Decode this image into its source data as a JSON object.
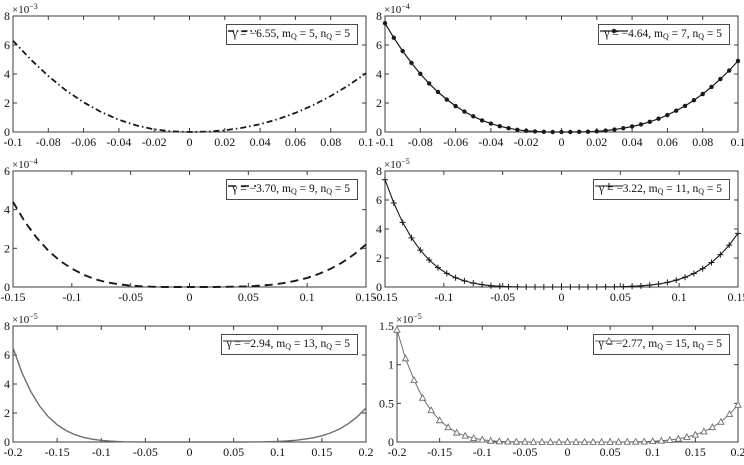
{
  "figure": {
    "background": "#ffffff",
    "grid": "off",
    "rows": 3,
    "cols": 2,
    "colors": {
      "black_line": "#1a1a1a",
      "gray_line": "#6e6e6e",
      "axis": "#3c3c3c",
      "text": "#111111"
    }
  },
  "chart_data": [
    {
      "name": "top-left",
      "type": "line",
      "exponent": {
        "base": "×10",
        "power": "−3"
      },
      "xlim": [
        -0.1,
        0.1
      ],
      "ylim": [
        0,
        8
      ],
      "xticks": {
        "values": [
          -0.1,
          -0.08,
          -0.06,
          -0.04,
          -0.02,
          0,
          0.02,
          0.04,
          0.06,
          0.08,
          0.1
        ],
        "labels": [
          "-0.1",
          "-0.08",
          "-0.06",
          "-0.04",
          "-0.02",
          "0",
          "0.02",
          "0.04",
          "0.06",
          "0.08",
          "0.1"
        ]
      },
      "yticks": {
        "values": [
          0,
          2,
          4,
          6,
          8
        ],
        "labels": [
          "0",
          "2",
          "4",
          "6",
          "8"
        ]
      },
      "style": {
        "color": "#1a1a1a",
        "dash": "6,3,1.5,3",
        "line_width": 1.8,
        "marker": "none"
      },
      "legend": {
        "gamma": "−6.55",
        "m_Q": "5",
        "n_Q": "5",
        "position": "top-right",
        "label_parts": [
          "γ = −6.55, m",
          {
            "sub": "Q"
          },
          " = 5, n",
          {
            "sub": "Q"
          },
          " = 5"
        ]
      },
      "x": [
        -0.1,
        -0.09,
        -0.08,
        -0.07,
        -0.06,
        -0.05,
        -0.04,
        -0.03,
        -0.02,
        -0.01,
        0,
        0.01,
        0.02,
        0.03,
        0.04,
        0.05,
        0.06,
        0.07,
        0.08,
        0.09,
        0.1
      ],
      "y": [
        6.3,
        5.0,
        3.86,
        2.87,
        2.05,
        1.37,
        0.84,
        0.45,
        0.18,
        0.04,
        0,
        0.03,
        0.12,
        0.29,
        0.54,
        0.88,
        1.32,
        1.85,
        2.48,
        3.21,
        4.05
      ]
    },
    {
      "name": "top-right",
      "type": "line",
      "exponent": {
        "base": "×10",
        "power": "−4"
      },
      "xlim": [
        -0.1,
        0.1
      ],
      "ylim": [
        0,
        8
      ],
      "xticks": {
        "values": [
          -0.1,
          -0.08,
          -0.06,
          -0.04,
          -0.02,
          0,
          0.02,
          0.04,
          0.06,
          0.08,
          0.1
        ],
        "labels": [
          "-0.1",
          "-0.08",
          "-0.06",
          "-0.04",
          "-0.02",
          "0",
          "0.02",
          "0.04",
          "0.06",
          "0.08",
          "0.1"
        ]
      },
      "yticks": {
        "values": [
          0,
          2,
          4,
          6,
          8
        ],
        "labels": [
          "0",
          "2",
          "4",
          "6",
          "8"
        ]
      },
      "style": {
        "color": "#1a1a1a",
        "dash": "",
        "line_width": 1.2,
        "marker": "dot"
      },
      "legend": {
        "gamma": "−4.64",
        "m_Q": "7",
        "n_Q": "5",
        "position": "top-right",
        "label_parts": [
          "γ = −4.64, m",
          {
            "sub": "Q"
          },
          " = 7, n",
          {
            "sub": "Q"
          },
          " = 5"
        ]
      },
      "x": [
        -0.1,
        -0.095,
        -0.09,
        -0.085,
        -0.08,
        -0.075,
        -0.07,
        -0.065,
        -0.06,
        -0.055,
        -0.05,
        -0.045,
        -0.04,
        -0.035,
        -0.03,
        -0.025,
        -0.02,
        -0.015,
        -0.01,
        -0.005,
        0,
        0.005,
        0.01,
        0.015,
        0.02,
        0.025,
        0.03,
        0.035,
        0.04,
        0.045,
        0.05,
        0.055,
        0.06,
        0.065,
        0.07,
        0.075,
        0.08,
        0.085,
        0.09,
        0.095,
        0.1
      ],
      "y": [
        7.5,
        6.5,
        5.58,
        4.76,
        4.01,
        3.35,
        2.76,
        2.24,
        1.79,
        1.41,
        1.08,
        0.8,
        0.58,
        0.4,
        0.26,
        0.15,
        0.08,
        0.04,
        0.01,
        0,
        0,
        0,
        0.01,
        0.02,
        0.05,
        0.1,
        0.17,
        0.26,
        0.38,
        0.52,
        0.7,
        0.92,
        1.17,
        1.47,
        1.8,
        2.19,
        2.62,
        3.11,
        3.65,
        4.24,
        4.9
      ]
    },
    {
      "name": "middle-left",
      "type": "line",
      "exponent": {
        "base": "×10",
        "power": "−4"
      },
      "xlim": [
        -0.15,
        0.15
      ],
      "ylim": [
        0,
        6
      ],
      "xticks": {
        "values": [
          -0.15,
          -0.1,
          -0.05,
          0,
          0.05,
          0.1,
          0.15
        ],
        "labels": [
          "-0.15",
          "-0.1",
          "-0.05",
          "0",
          "0.05",
          "0.1",
          "0.15"
        ]
      },
      "yticks": {
        "values": [
          0,
          2,
          4,
          6
        ],
        "labels": [
          "0",
          "2",
          "4",
          "6"
        ]
      },
      "style": {
        "color": "#1a1a1a",
        "dash": "8,5",
        "line_width": 1.9,
        "marker": "none"
      },
      "legend": {
        "gamma": "−3.70",
        "m_Q": "9",
        "n_Q": "5",
        "position": "top-right",
        "label_parts": [
          "γ = −3.70, m",
          {
            "sub": "Q"
          },
          " = 9, n",
          {
            "sub": "Q"
          },
          " = 5"
        ]
      },
      "x": [
        -0.15,
        -0.14,
        -0.13,
        -0.12,
        -0.11,
        -0.1,
        -0.09,
        -0.08,
        -0.07,
        -0.06,
        -0.05,
        -0.04,
        -0.03,
        -0.02,
        -0.01,
        0,
        0.01,
        0.02,
        0.03,
        0.04,
        0.05,
        0.06,
        0.07,
        0.08,
        0.09,
        0.1,
        0.11,
        0.12,
        0.13,
        0.14,
        0.15
      ],
      "y": [
        4.4,
        3.38,
        2.56,
        1.88,
        1.35,
        0.95,
        0.63,
        0.4,
        0.24,
        0.14,
        0.07,
        0.03,
        0.01,
        0,
        0,
        0,
        0,
        0,
        0.01,
        0.02,
        0.03,
        0.07,
        0.12,
        0.2,
        0.32,
        0.47,
        0.68,
        0.94,
        1.28,
        1.69,
        2.2
      ]
    },
    {
      "name": "middle-right",
      "type": "line",
      "exponent": {
        "base": "×10",
        "power": "−5"
      },
      "xlim": [
        -0.15,
        0.15
      ],
      "ylim": [
        0,
        8
      ],
      "xticks": {
        "values": [
          -0.15,
          -0.1,
          -0.05,
          0,
          0.05,
          0.1,
          0.15
        ],
        "labels": [
          "-0.15",
          "-0.1",
          "-0.05",
          "0",
          "0.05",
          "0.1",
          "0.15"
        ]
      },
      "yticks": {
        "values": [
          0,
          2,
          4,
          6,
          8
        ],
        "labels": [
          "0",
          "2",
          "4",
          "6",
          "8"
        ]
      },
      "style": {
        "color": "#1a1a1a",
        "dash": "",
        "line_width": 1.1,
        "marker": "plus"
      },
      "legend": {
        "gamma": "−3.22",
        "m_Q": "11",
        "n_Q": "5",
        "position": "top-right",
        "label_parts": [
          "γ = −3.22, m",
          {
            "sub": "Q"
          },
          " = 11, n",
          {
            "sub": "Q"
          },
          " = 5"
        ]
      },
      "x": [
        -0.15,
        -0.1425,
        -0.135,
        -0.1275,
        -0.12,
        -0.1125,
        -0.105,
        -0.0975,
        -0.09,
        -0.0825,
        -0.075,
        -0.0675,
        -0.06,
        -0.0525,
        -0.045,
        -0.0375,
        -0.03,
        -0.0225,
        -0.015,
        -0.0075,
        0,
        0.0075,
        0.015,
        0.0225,
        0.03,
        0.0375,
        0.045,
        0.0525,
        0.06,
        0.0675,
        0.075,
        0.0825,
        0.09,
        0.0975,
        0.105,
        0.1125,
        0.12,
        0.1275,
        0.135,
        0.1425,
        0.15
      ],
      "y": [
        7.4,
        5.79,
        4.46,
        3.39,
        2.54,
        1.86,
        1.34,
        0.94,
        0.64,
        0.42,
        0.27,
        0.16,
        0.09,
        0.05,
        0.02,
        0.01,
        0,
        0,
        0,
        0,
        0,
        0,
        0,
        0,
        0,
        0.01,
        0.01,
        0.02,
        0.05,
        0.08,
        0.13,
        0.21,
        0.32,
        0.47,
        0.67,
        0.93,
        1.27,
        1.69,
        2.23,
        2.89,
        3.7
      ]
    },
    {
      "name": "bottom-left",
      "type": "line",
      "exponent": {
        "base": "×10",
        "power": "−5"
      },
      "xlim": [
        -0.2,
        0.2
      ],
      "ylim": [
        0,
        8
      ],
      "xticks": {
        "values": [
          -0.2,
          -0.15,
          -0.1,
          -0.05,
          0,
          0.05,
          0.1,
          0.15,
          0.2
        ],
        "labels": [
          "-0.2",
          "-0.15",
          "-0.1",
          "-0.05",
          "0",
          "0.05",
          "0.1",
          "0.15",
          "0.2"
        ]
      },
      "yticks": {
        "values": [
          0,
          2,
          4,
          6,
          8
        ],
        "labels": [
          "0",
          "2",
          "4",
          "6",
          "8"
        ]
      },
      "style": {
        "color": "#6e6e6e",
        "dash": "",
        "line_width": 1.4,
        "marker": "none"
      },
      "legend": {
        "gamma": "−2.94",
        "m_Q": "13",
        "n_Q": "5",
        "position": "top-right",
        "label_parts": [
          "γ = −2.94, m",
          {
            "sub": "Q"
          },
          " = 13, n",
          {
            "sub": "Q"
          },
          " = 5"
        ]
      },
      "x": [
        -0.2,
        -0.19,
        -0.18,
        -0.17,
        -0.16,
        -0.15,
        -0.14,
        -0.13,
        -0.12,
        -0.11,
        -0.1,
        -0.09,
        -0.08,
        -0.07,
        -0.06,
        -0.05,
        -0.04,
        -0.03,
        -0.02,
        -0.01,
        0,
        0.01,
        0.02,
        0.03,
        0.04,
        0.05,
        0.06,
        0.07,
        0.08,
        0.09,
        0.1,
        0.11,
        0.12,
        0.13,
        0.14,
        0.15,
        0.16,
        0.17,
        0.18,
        0.19,
        0.2
      ],
      "y": [
        6.5,
        4.8,
        3.49,
        2.49,
        1.74,
        1.19,
        0.79,
        0.51,
        0.32,
        0.19,
        0.11,
        0.06,
        0.03,
        0.01,
        0.01,
        0,
        0,
        0,
        0,
        0,
        0,
        0,
        0,
        0,
        0,
        0,
        0,
        0.01,
        0.01,
        0.02,
        0.04,
        0.07,
        0.12,
        0.19,
        0.29,
        0.43,
        0.63,
        0.9,
        1.26,
        1.74,
        2.35
      ]
    },
    {
      "name": "bottom-right",
      "type": "line",
      "exponent": {
        "base": "×10",
        "power": "−5"
      },
      "xlim": [
        -0.2,
        0.2
      ],
      "ylim": [
        0,
        1.5
      ],
      "xticks": {
        "values": [
          -0.2,
          -0.15,
          -0.1,
          -0.05,
          0,
          0.05,
          0.1,
          0.15,
          0.2
        ],
        "labels": [
          "-0.2",
          "-0.15",
          "-0.1",
          "-0.05",
          "0",
          "0.05",
          "0.1",
          "0.15",
          "0.2"
        ]
      },
      "yticks": {
        "values": [
          0,
          0.5,
          1,
          1.5
        ],
        "labels": [
          "0",
          "0.5",
          "1",
          "1.5"
        ]
      },
      "style": {
        "color": "#6e6e6e",
        "dash": "",
        "line_width": 1.0,
        "marker": "triangle"
      },
      "legend": {
        "gamma": "−2.77",
        "m_Q": "15",
        "n_Q": "5",
        "position": "top-right",
        "label_parts": [
          "γ = −2.77, m",
          {
            "sub": "Q"
          },
          " = 15, n",
          {
            "sub": "Q"
          },
          " = 5"
        ]
      },
      "x": [
        -0.2,
        -0.19,
        -0.18,
        -0.17,
        -0.16,
        -0.15,
        -0.14,
        -0.13,
        -0.12,
        -0.11,
        -0.1,
        -0.09,
        -0.08,
        -0.07,
        -0.06,
        -0.05,
        -0.04,
        -0.03,
        -0.02,
        -0.01,
        0,
        0.01,
        0.02,
        0.03,
        0.04,
        0.05,
        0.06,
        0.07,
        0.08,
        0.09,
        0.1,
        0.11,
        0.12,
        0.13,
        0.14,
        0.15,
        0.16,
        0.17,
        0.18,
        0.19,
        0.2
      ],
      "y": [
        1.45,
        1.08,
        0.8,
        0.57,
        0.41,
        0.28,
        0.19,
        0.12,
        0.08,
        0.05,
        0.03,
        0.015,
        0.008,
        0.004,
        0.002,
        0.001,
        0,
        0,
        0,
        0,
        0,
        0,
        0,
        0,
        0,
        0,
        0.001,
        0.001,
        0.003,
        0.005,
        0.009,
        0.016,
        0.026,
        0.041,
        0.063,
        0.093,
        0.135,
        0.19,
        0.26,
        0.36,
        0.48
      ]
    }
  ]
}
